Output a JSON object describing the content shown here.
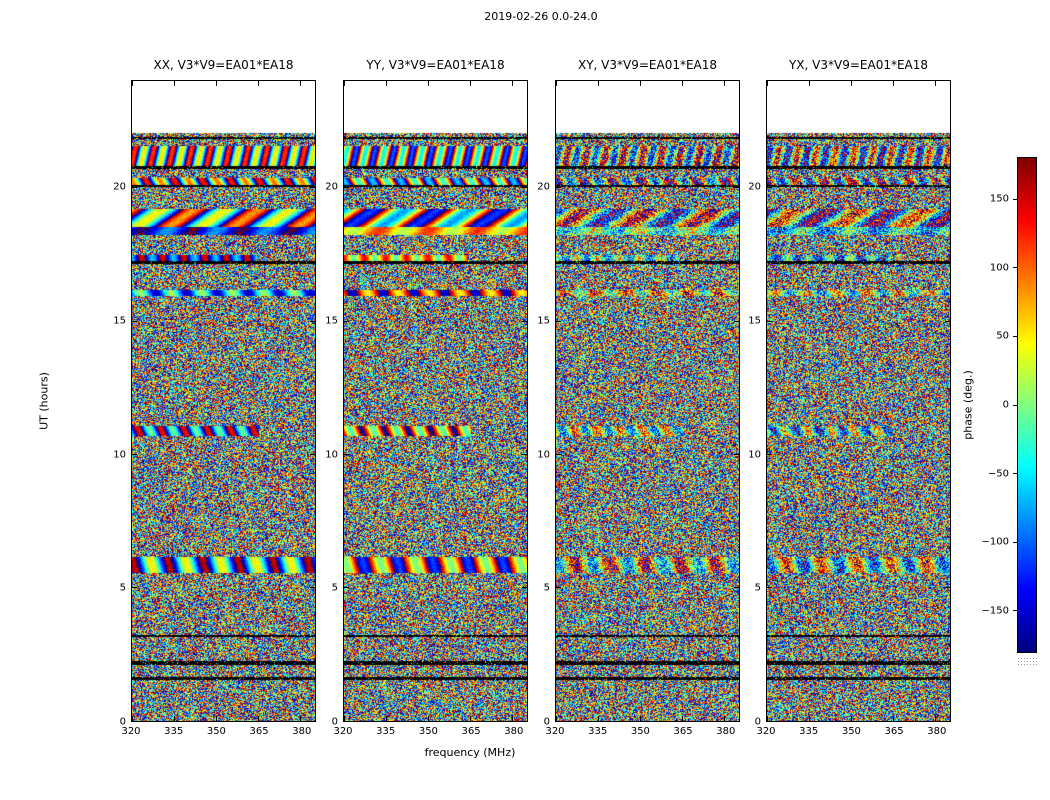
{
  "figure": {
    "title": "2019-02-26 0.0-24.0",
    "xlabel": "frequency (MHz)",
    "ylabel": "UT (hours)",
    "colorbar": {
      "label": "phase (deg.)",
      "min": -180,
      "max": 180,
      "colormap": "jet",
      "ticks": [
        {
          "v": 150,
          "label": "150"
        },
        {
          "v": 100,
          "label": "100"
        },
        {
          "v": 50,
          "label": "50"
        },
        {
          "v": 0,
          "label": "0"
        },
        {
          "v": -50,
          "label": "−50"
        },
        {
          "v": -100,
          "label": "−100"
        },
        {
          "v": -150,
          "label": "−150"
        }
      ]
    }
  },
  "axes": {
    "x": {
      "min": 320,
      "max": 385,
      "ticks": [
        {
          "v": 320,
          "label": "320"
        },
        {
          "v": 335,
          "label": "335"
        },
        {
          "v": 350,
          "label": "350"
        },
        {
          "v": 365,
          "label": "365"
        },
        {
          "v": 380,
          "label": "380"
        }
      ]
    },
    "y": {
      "min": 0,
      "max": 24,
      "ticks": [
        {
          "v": 0,
          "label": "0"
        },
        {
          "v": 5,
          "label": "5"
        },
        {
          "v": 10,
          "label": "10"
        },
        {
          "v": 15,
          "label": "15"
        },
        {
          "v": 20,
          "label": "20"
        }
      ]
    }
  },
  "panels": [
    {
      "title": "XX, V3*V9=EA01*EA18",
      "polarization": "XX",
      "baseline": "V3*V9=EA01*EA18"
    },
    {
      "title": "YY, V3*V9=EA01*EA18",
      "polarization": "YY",
      "baseline": "V3*V9=EA01*EA18"
    },
    {
      "title": "XY, V3*V9=EA01*EA18",
      "polarization": "XY",
      "baseline": "V3*V9=EA01*EA18"
    },
    {
      "title": "YX, V3*V9=EA01*EA18",
      "polarization": "YX",
      "baseline": "V3*V9=EA01*EA18"
    }
  ],
  "chart_data": {
    "type": "heatmap",
    "title": "2019-02-26 0.0-24.0",
    "xlabel": "frequency (MHz)",
    "ylabel": "UT (hours)",
    "x_range": [
      320,
      385
    ],
    "x_ticks": [
      320,
      335,
      350,
      365,
      380
    ],
    "y_range": [
      0,
      24
    ],
    "y_ticks": [
      0,
      5,
      10,
      15,
      20
    ],
    "time_coverage_ut_hours": [
      0,
      22
    ],
    "value_label": "phase (deg.)",
    "value_range": [
      -180,
      180
    ],
    "colorbar_ticks": [
      150,
      100,
      50,
      0,
      -50,
      -100,
      -150
    ],
    "colormap": "jet",
    "legend_position": "right colorbar",
    "grid": false,
    "panels": [
      "XX, V3*V9=EA01*EA18",
      "YY, V3*V9=EA01*EA18",
      "XY, V3*V9=EA01*EA18",
      "YX, V3*V9=EA01*EA18"
    ],
    "content": "Interferometric visibility phase (deg.) versus frequency (MHz, x) and UT (hours, y) for baseline V3*V9=EA01*EA18 in four polarizations XX/YY/XY/YX; noise-like phase pixels spanning the full ±180° jet color range, interrupted by horizontal black flagged time rows and smooth-phase calibrator scan bands (blue-dominated in XX, orange/yellow in YY); no data above ~UT 22 (blank white region at top of each panel)."
  }
}
